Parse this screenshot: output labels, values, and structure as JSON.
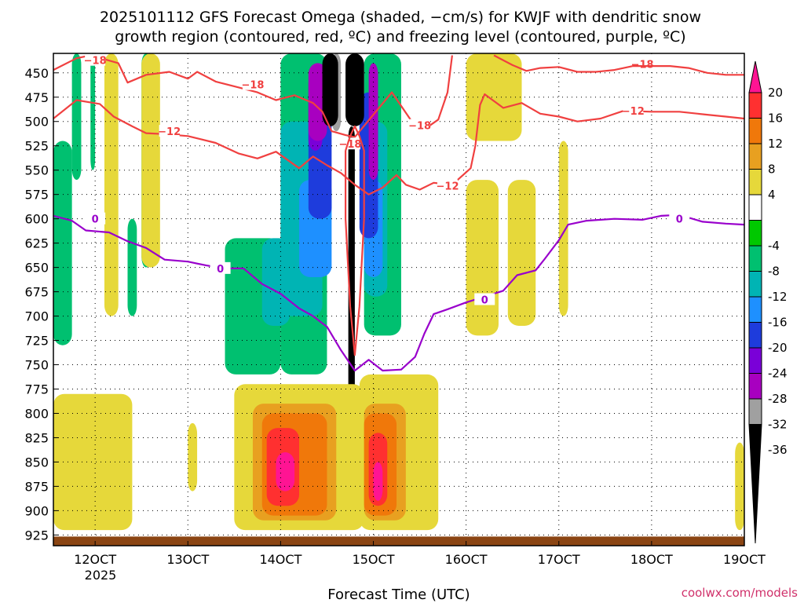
{
  "chart_data": {
    "type": "heatmap",
    "title_line1": "2025101112 GFS Forecast Omega (shaded, −cm/s) for KWJF with dendritic snow",
    "title_line2": "growth region (contoured, red, ºC) and freezing level (contoured, purple, ºC)",
    "xlabel": "Forecast Time (UTC)",
    "credit": "coolwx.com/models",
    "x_ticks": [
      "12OCT",
      "13OCT",
      "14OCT",
      "15OCT",
      "16OCT",
      "17OCT",
      "18OCT",
      "19OCT"
    ],
    "x_tick_values": [
      12,
      13,
      14,
      15,
      16,
      17,
      18,
      19
    ],
    "x_sublabel": "2025",
    "xlim": [
      11.55,
      19.0
    ],
    "y_ticks": [
      "450",
      "475",
      "500",
      "525",
      "550",
      "575",
      "600",
      "625",
      "650",
      "675",
      "700",
      "725",
      "750",
      "775",
      "800",
      "825",
      "850",
      "875",
      "900",
      "925"
    ],
    "y_tick_values": [
      450,
      475,
      500,
      525,
      550,
      575,
      600,
      625,
      650,
      675,
      700,
      725,
      750,
      775,
      800,
      825,
      850,
      875,
      900,
      925
    ],
    "ylim": [
      430,
      936
    ],
    "colorbar_labels": [
      "20",
      "16",
      "12",
      "8",
      "4",
      "-4",
      "-8",
      "-12",
      "-16",
      "-20",
      "-24",
      "-28",
      "-32",
      "-36"
    ],
    "colorbar_colors": [
      "#ff1493",
      "#ff3030",
      "#f0780a",
      "#e8a020",
      "#e6d83a",
      "#ffffff",
      "#00c800",
      "#00c070",
      "#00b4b4",
      "#1e90ff",
      "#1e3cdc",
      "#7a00d8",
      "#a800c0",
      "#a0a0a0",
      "#000000"
    ],
    "colors": {
      "dgz_contour": "#f04040",
      "freezing_contour": "#9900cc",
      "ground": "#8b4513"
    },
    "dgz_contours": [
      {
        "level": "-18",
        "label_positions": [
          [
            12.0,
            437
          ],
          [
            13.7,
            462
          ],
          [
            15.5,
            504
          ],
          [
            17.9,
            441
          ],
          [
            14.75,
            523
          ]
        ],
        "points": [
          [
            11.55,
            447
          ],
          [
            11.8,
            435
          ],
          [
            11.95,
            432
          ],
          [
            12.1,
            436
          ],
          [
            12.25,
            440
          ],
          [
            12.35,
            460
          ],
          [
            12.55,
            452
          ],
          [
            12.8,
            449
          ],
          [
            13.0,
            456
          ],
          [
            13.1,
            449
          ],
          [
            13.3,
            459
          ],
          [
            13.55,
            465
          ],
          [
            13.75,
            470
          ],
          [
            13.95,
            478
          ],
          [
            14.15,
            473
          ],
          [
            14.35,
            481
          ],
          [
            14.45,
            490
          ],
          [
            14.55,
            510
          ],
          [
            14.7,
            514
          ],
          [
            14.8,
            516
          ],
          [
            15.0,
            493
          ],
          [
            15.2,
            470
          ],
          [
            15.4,
            498
          ],
          [
            15.55,
            508
          ],
          [
            15.7,
            498
          ],
          [
            15.8,
            470
          ],
          [
            15.85,
            432
          ]
        ]
      },
      {
        "level": "-18",
        "label_positions": [],
        "points": [
          [
            16.3,
            432
          ],
          [
            16.5,
            442
          ],
          [
            16.65,
            448
          ],
          [
            16.8,
            445
          ],
          [
            17.0,
            444
          ],
          [
            17.2,
            449
          ],
          [
            17.4,
            449
          ],
          [
            17.6,
            447
          ],
          [
            17.8,
            443
          ],
          [
            18.0,
            443
          ],
          [
            18.2,
            443
          ],
          [
            18.4,
            445
          ],
          [
            18.6,
            450
          ],
          [
            18.8,
            452
          ],
          [
            19.0,
            452
          ]
        ]
      },
      {
        "level": "-12",
        "label_positions": [
          [
            12.8,
            510
          ],
          [
            15.8,
            566
          ],
          [
            17.8,
            489
          ]
        ],
        "points": [
          [
            11.55,
            497
          ],
          [
            11.8,
            478
          ],
          [
            12.05,
            482
          ],
          [
            12.2,
            495
          ],
          [
            12.4,
            505
          ],
          [
            12.55,
            512
          ],
          [
            12.75,
            513
          ],
          [
            13.0,
            515
          ],
          [
            13.3,
            522
          ],
          [
            13.55,
            533
          ],
          [
            13.75,
            538
          ],
          [
            13.95,
            531
          ],
          [
            14.2,
            548
          ],
          [
            14.35,
            536
          ],
          [
            14.5,
            545
          ],
          [
            14.65,
            553
          ],
          [
            14.8,
            565
          ],
          [
            14.95,
            575
          ],
          [
            15.1,
            568
          ],
          [
            15.25,
            555
          ],
          [
            15.35,
            565
          ],
          [
            15.5,
            570
          ],
          [
            15.65,
            563
          ],
          [
            15.85,
            565
          ],
          [
            16.05,
            548
          ],
          [
            16.1,
            525
          ],
          [
            16.15,
            483
          ],
          [
            16.2,
            472
          ],
          [
            16.4,
            486
          ],
          [
            16.6,
            481
          ],
          [
            16.8,
            492
          ],
          [
            17.0,
            495
          ],
          [
            17.2,
            500
          ],
          [
            17.45,
            497
          ],
          [
            17.7,
            489
          ],
          [
            18.0,
            490
          ],
          [
            18.3,
            490
          ],
          [
            18.6,
            493
          ],
          [
            18.8,
            495
          ],
          [
            19.0,
            497
          ]
        ]
      },
      {
        "level": "-12",
        "label_positions": [],
        "points": [
          [
            14.7,
            530
          ],
          [
            14.75,
            515
          ],
          [
            14.8,
            505
          ],
          [
            14.85,
            515
          ],
          [
            14.9,
            530
          ],
          [
            14.9,
            600
          ],
          [
            14.85,
            690
          ],
          [
            14.8,
            740
          ],
          [
            14.75,
            690
          ],
          [
            14.7,
            600
          ],
          [
            14.7,
            530
          ]
        ]
      }
    ],
    "freezing_contour": {
      "level": "0",
      "label_positions": [
        [
          12.0,
          600
        ],
        [
          13.35,
          651
        ],
        [
          16.2,
          683
        ],
        [
          18.3,
          600
        ]
      ],
      "points": [
        [
          11.55,
          597
        ],
        [
          11.75,
          602
        ],
        [
          11.9,
          612
        ],
        [
          12.15,
          614
        ],
        [
          12.35,
          623
        ],
        [
          12.55,
          630
        ],
        [
          12.75,
          642
        ],
        [
          13.0,
          644
        ],
        [
          13.2,
          648
        ],
        [
          13.4,
          651
        ],
        [
          13.6,
          651
        ],
        [
          13.8,
          667
        ],
        [
          14.0,
          677
        ],
        [
          14.2,
          692
        ],
        [
          14.35,
          700
        ],
        [
          14.5,
          711
        ],
        [
          14.65,
          735
        ],
        [
          14.8,
          756
        ],
        [
          14.95,
          745
        ],
        [
          15.1,
          756
        ],
        [
          15.3,
          755
        ],
        [
          15.45,
          742
        ],
        [
          15.55,
          718
        ],
        [
          15.65,
          698
        ],
        [
          15.8,
          693
        ],
        [
          16.0,
          686
        ],
        [
          16.2,
          680
        ],
        [
          16.4,
          674
        ],
        [
          16.55,
          658
        ],
        [
          16.75,
          653
        ],
        [
          16.85,
          641
        ],
        [
          17.0,
          622
        ],
        [
          17.1,
          606
        ],
        [
          17.3,
          602
        ],
        [
          17.6,
          600
        ],
        [
          17.9,
          601
        ],
        [
          18.1,
          597
        ],
        [
          18.3,
          596
        ],
        [
          18.55,
          603
        ],
        [
          18.8,
          605
        ],
        [
          19.0,
          606
        ]
      ]
    },
    "omega_regions": [
      {
        "band": "-8",
        "x": [
          11.55,
          11.75
        ],
        "y": [
          520,
          730
        ]
      },
      {
        "band": "-8",
        "x": [
          11.75,
          11.85
        ],
        "y": [
          430,
          560
        ]
      },
      {
        "band": "-8",
        "x": [
          11.95,
          12.0
        ],
        "y": [
          430,
          550
        ]
      },
      {
        "band": "-8",
        "x": [
          12.35,
          12.45
        ],
        "y": [
          600,
          700
        ]
      },
      {
        "band": "-8",
        "x": [
          12.5,
          12.6
        ],
        "y": [
          430,
          650
        ]
      },
      {
        "band": "-8",
        "x": [
          13.4,
          14.0
        ],
        "y": [
          620,
          760
        ]
      },
      {
        "band": "-8",
        "x": [
          14.0,
          14.5
        ],
        "y": [
          430,
          760
        ]
      },
      {
        "band": "-8",
        "x": [
          14.9,
          15.3
        ],
        "y": [
          430,
          720
        ]
      },
      {
        "band": "-12",
        "x": [
          13.8,
          14.1
        ],
        "y": [
          620,
          710
        ]
      },
      {
        "band": "-12",
        "x": [
          14.0,
          14.45
        ],
        "y": [
          500,
          700
        ]
      },
      {
        "band": "-12",
        "x": [
          14.9,
          15.15
        ],
        "y": [
          500,
          680
        ]
      },
      {
        "band": "-16",
        "x": [
          14.2,
          14.55
        ],
        "y": [
          560,
          660
        ]
      },
      {
        "band": "-16",
        "x": [
          14.9,
          15.1
        ],
        "y": [
          560,
          660
        ]
      },
      {
        "band": "-20",
        "x": [
          14.3,
          14.55
        ],
        "y": [
          470,
          600
        ]
      },
      {
        "band": "-20",
        "x": [
          14.85,
          15.05
        ],
        "y": [
          470,
          620
        ]
      },
      {
        "band": "-24",
        "x": [
          14.3,
          14.45
        ],
        "y": [
          450,
          530
        ]
      },
      {
        "band": "-28",
        "x": [
          14.3,
          14.5
        ],
        "y": [
          440,
          520
        ]
      },
      {
        "band": "-28",
        "x": [
          14.95,
          15.05
        ],
        "y": [
          440,
          560
        ]
      },
      {
        "band": "-32",
        "x": [
          14.55,
          14.65
        ],
        "y": [
          430,
          510
        ]
      },
      {
        "band": "-36",
        "x": [
          14.45,
          14.62
        ],
        "y": [
          430,
          505
        ]
      },
      {
        "band": "-36",
        "x": [
          14.7,
          14.9
        ],
        "y": [
          430,
          505
        ]
      },
      {
        "band": "-36",
        "x": [
          14.73,
          14.8
        ],
        "y": [
          505,
          800
        ]
      },
      {
        "band": "4",
        "x": [
          12.1,
          12.25
        ],
        "y": [
          430,
          700
        ]
      },
      {
        "band": "4",
        "x": [
          12.5,
          12.7
        ],
        "y": [
          430,
          650
        ]
      },
      {
        "band": "4",
        "x": [
          11.55,
          12.4
        ],
        "y": [
          780,
          920
        ]
      },
      {
        "band": "4",
        "x": [
          13.0,
          13.1
        ],
        "y": [
          810,
          880
        ]
      },
      {
        "band": "4",
        "x": [
          13.5,
          14.9
        ],
        "y": [
          770,
          920
        ]
      },
      {
        "band": "4",
        "x": [
          14.85,
          15.7
        ],
        "y": [
          760,
          920
        ]
      },
      {
        "band": "4",
        "x": [
          16.0,
          16.35
        ],
        "y": [
          560,
          720
        ]
      },
      {
        "band": "4",
        "x": [
          16.45,
          16.75
        ],
        "y": [
          560,
          710
        ]
      },
      {
        "band": "4",
        "x": [
          16.0,
          16.6
        ],
        "y": [
          430,
          520
        ]
      },
      {
        "band": "4",
        "x": [
          17.0,
          17.1
        ],
        "y": [
          520,
          700
        ]
      },
      {
        "band": "4",
        "x": [
          18.9,
          19.0
        ],
        "y": [
          830,
          920
        ]
      },
      {
        "band": "8",
        "x": [
          13.7,
          14.6
        ],
        "y": [
          790,
          910
        ]
      },
      {
        "band": "8",
        "x": [
          14.9,
          15.35
        ],
        "y": [
          790,
          910
        ]
      },
      {
        "band": "12",
        "x": [
          13.8,
          14.5
        ],
        "y": [
          800,
          905
        ]
      },
      {
        "band": "12",
        "x": [
          14.9,
          15.25
        ],
        "y": [
          800,
          905
        ]
      },
      {
        "band": "16",
        "x": [
          13.85,
          14.2
        ],
        "y": [
          815,
          895
        ]
      },
      {
        "band": "16",
        "x": [
          14.95,
          15.15
        ],
        "y": [
          820,
          895
        ]
      },
      {
        "band": "20",
        "x": [
          13.95,
          14.15
        ],
        "y": [
          840,
          880
        ]
      },
      {
        "band": "20",
        "x": [
          15.0,
          15.1
        ],
        "y": [
          850,
          890
        ]
      }
    ],
    "ground_level": 925
  }
}
